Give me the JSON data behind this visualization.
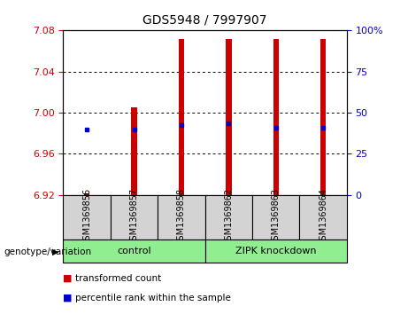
{
  "title": "GDS5948 / 7997907",
  "samples": [
    "GSM1369856",
    "GSM1369857",
    "GSM1369858",
    "GSM1369862",
    "GSM1369863",
    "GSM1369864"
  ],
  "bar_bottoms": [
    6.92,
    6.92,
    6.92,
    6.92,
    6.92,
    6.92
  ],
  "bar_tops": [
    6.921,
    7.005,
    7.072,
    7.072,
    7.072,
    7.072
  ],
  "blue_values": [
    6.984,
    6.984,
    6.988,
    6.99,
    6.985,
    6.985
  ],
  "ylim": [
    6.92,
    7.08
  ],
  "yticks_left": [
    6.92,
    6.96,
    7.0,
    7.04,
    7.08
  ],
  "yticks_right": [
    0,
    25,
    50,
    75,
    100
  ],
  "bar_color": "#cc0000",
  "blue_color": "#0000cc",
  "bar_width": 0.12,
  "bg_color": "#ffffff",
  "plot_bg": "#ffffff",
  "tick_color_left": "#cc0000",
  "tick_color_right": "#0000cc",
  "sample_bg_color": "#d3d3d3",
  "group_bg_color": "#90EE90",
  "legend_red": "transformed count",
  "legend_blue": "percentile rank within the sample",
  "genotype_label": "genotype/variation",
  "group_defs": [
    {
      "label": "control",
      "start": 0,
      "end": 2
    },
    {
      "label": "ZIPK knockdown",
      "start": 3,
      "end": 5
    }
  ]
}
